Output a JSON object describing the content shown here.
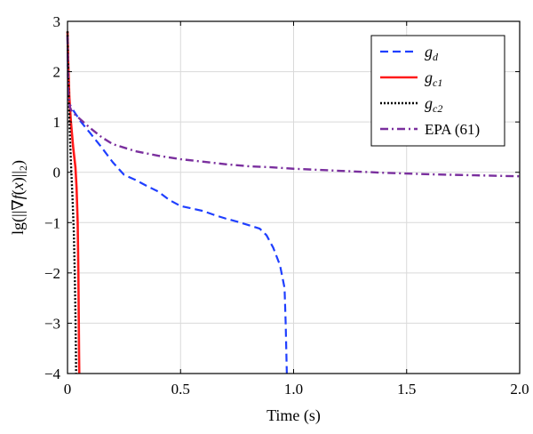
{
  "chart_data": {
    "type": "line",
    "title": "",
    "xlabel": "Time (s)",
    "ylabel": "lg(||∇f(x)||₂)",
    "xlim": [
      0,
      2.0
    ],
    "ylim": [
      -4,
      3
    ],
    "grid": true,
    "legend_position": "top-right",
    "x_ticks": [
      0,
      0.5,
      1.0,
      1.5,
      2.0
    ],
    "x_tick_labels": [
      "0",
      "0.5",
      "1.0",
      "1.5",
      "2.0"
    ],
    "y_ticks": [
      3,
      2,
      1,
      0,
      -1,
      -2,
      -3,
      -4
    ],
    "y_tick_labels": [
      "3",
      "2",
      "1",
      "0",
      "−1",
      "−2",
      "−3",
      "−4"
    ],
    "series": [
      {
        "name": "g_d",
        "legend_main": "g",
        "legend_sub": "d",
        "color": "#1f3fff",
        "style": "dashed",
        "x": [
          0,
          0.003,
          0.01,
          0.03,
          0.06,
          0.1,
          0.15,
          0.2,
          0.25,
          0.3,
          0.35,
          0.4,
          0.45,
          0.5,
          0.55,
          0.6,
          0.65,
          0.7,
          0.75,
          0.8,
          0.85,
          0.88,
          0.91,
          0.94,
          0.96,
          0.965,
          0.968,
          0.97
        ],
        "y": [
          2.7,
          1.6,
          1.35,
          1.2,
          1.0,
          0.78,
          0.5,
          0.2,
          -0.05,
          -0.15,
          -0.27,
          -0.38,
          -0.55,
          -0.67,
          -0.72,
          -0.77,
          -0.85,
          -0.92,
          -0.98,
          -1.05,
          -1.12,
          -1.25,
          -1.5,
          -1.85,
          -2.3,
          -3.0,
          -3.6,
          -4.0
        ]
      },
      {
        "name": "g_c1",
        "legend_main": "g",
        "legend_sub": "c1",
        "color": "#ff1a1a",
        "style": "solid",
        "x": [
          0,
          0.003,
          0.008,
          0.015,
          0.025,
          0.035,
          0.04,
          0.045,
          0.048,
          0.05,
          0.051,
          0.052
        ],
        "y": [
          2.8,
          2.2,
          1.5,
          1.0,
          0.5,
          0.1,
          -0.3,
          -1.0,
          -2.0,
          -3.0,
          -3.6,
          -4.0
        ]
      },
      {
        "name": "g_c2",
        "legend_main": "g",
        "legend_sub": "c2",
        "color": "#000000",
        "style": "dotted",
        "x": [
          0,
          0.003,
          0.006,
          0.01,
          0.015,
          0.022,
          0.028,
          0.032,
          0.035,
          0.037,
          0.038
        ],
        "y": [
          2.8,
          2.0,
          1.4,
          0.8,
          0.2,
          -0.5,
          -1.2,
          -2.0,
          -2.8,
          -3.5,
          -4.0
        ]
      },
      {
        "name": "EPA (61)",
        "legend_main": "EPA (61)",
        "legend_sub": "",
        "color": "#7a2f9e",
        "style": "dashdot",
        "x": [
          0,
          0.003,
          0.01,
          0.02,
          0.05,
          0.1,
          0.15,
          0.2,
          0.3,
          0.4,
          0.5,
          0.6,
          0.7,
          0.8,
          0.9,
          1.0,
          1.2,
          1.4,
          1.6,
          1.8,
          2.0
        ],
        "y": [
          2.7,
          1.6,
          1.3,
          1.2,
          1.08,
          0.88,
          0.7,
          0.56,
          0.42,
          0.33,
          0.26,
          0.21,
          0.16,
          0.12,
          0.1,
          0.07,
          0.03,
          -0.01,
          -0.04,
          -0.06,
          -0.08
        ]
      }
    ]
  }
}
